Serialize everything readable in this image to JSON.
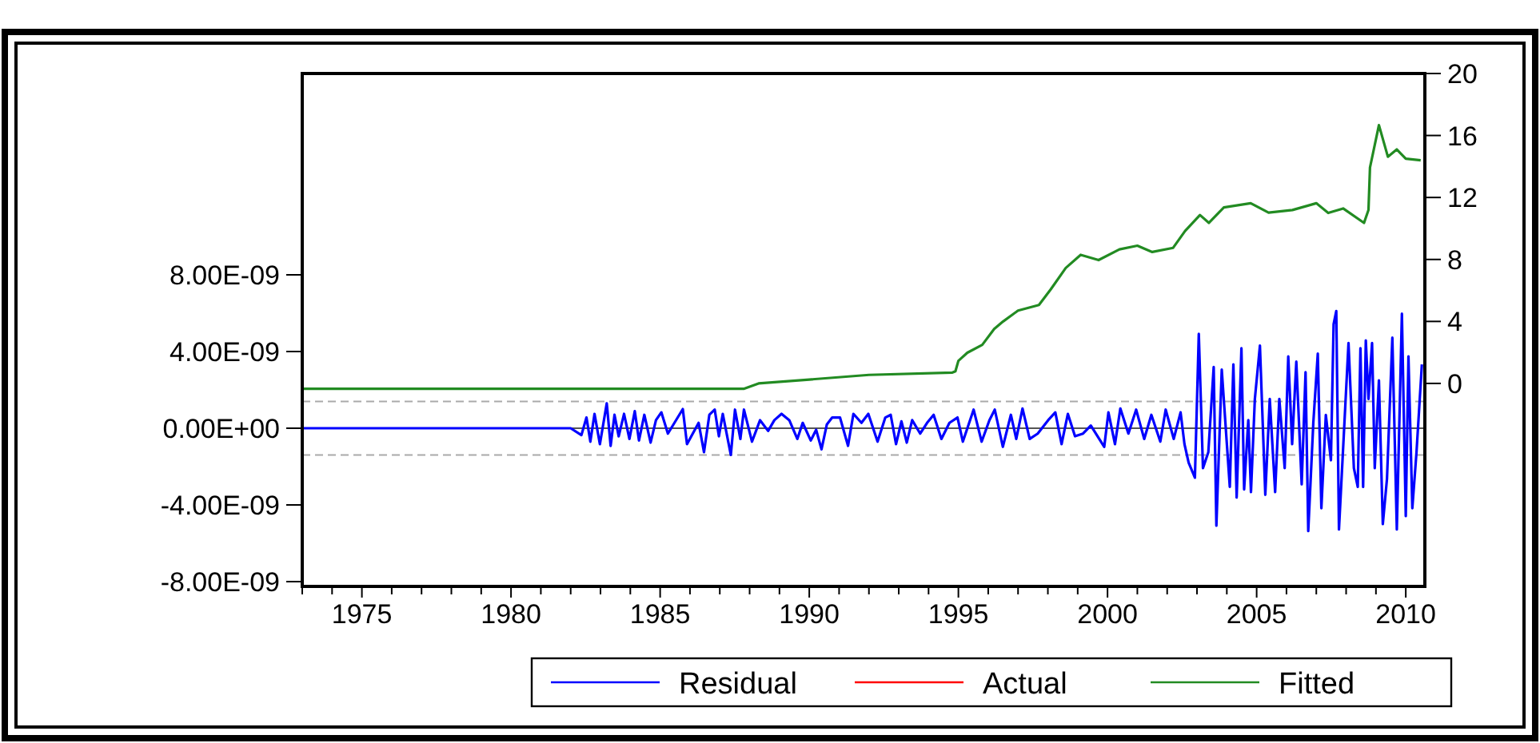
{
  "chart_data": {
    "type": "line",
    "legend": "bottom",
    "grid": false,
    "xlim": [
      1973,
      2010.64
    ],
    "xticks": [
      {
        "value": 1973,
        "label": null
      },
      {
        "value": 1974,
        "label": null
      },
      1975,
      {
        "value": 1976,
        "label": null
      },
      {
        "value": 1977,
        "label": null
      },
      {
        "value": 1978,
        "label": null
      },
      {
        "value": 1979,
        "label": null
      },
      1980,
      {
        "value": 1981,
        "label": null
      },
      {
        "value": 1982,
        "label": null
      },
      {
        "value": 1983,
        "label": null
      },
      {
        "value": 1984,
        "label": null
      },
      1985,
      {
        "value": 1986,
        "label": null
      },
      {
        "value": 1987,
        "label": null
      },
      {
        "value": 1988,
        "label": null
      },
      {
        "value": 1989,
        "label": null
      },
      1990,
      {
        "value": 1991,
        "label": null
      },
      {
        "value": 1992,
        "label": null
      },
      {
        "value": 1993,
        "label": null
      },
      {
        "value": 1994,
        "label": null
      },
      1995,
      {
        "value": 1996,
        "label": null
      },
      {
        "value": 1997,
        "label": null
      },
      {
        "value": 1998,
        "label": null
      },
      {
        "value": 1999,
        "label": null
      },
      2000,
      {
        "value": 2001,
        "label": null
      },
      {
        "value": 2002,
        "label": null
      },
      {
        "value": 2003,
        "label": null
      },
      {
        "value": 2004,
        "label": null
      },
      2005,
      {
        "value": 2006,
        "label": null
      },
      {
        "value": 2007,
        "label": null
      },
      {
        "value": 2008,
        "label": null
      },
      {
        "value": 2009,
        "label": null
      },
      2010
    ],
    "ylim": [
      -8.25e-09,
      1.85e-08
    ],
    "yticks": [
      {
        "value": -8e-09,
        "label": "-8.00E-09"
      },
      {
        "value": -4e-09,
        "label": "-4.00E-09"
      },
      {
        "value": 0,
        "label": "0.00E+00"
      },
      {
        "value": 4e-09,
        "label": "4.00E-09"
      },
      {
        "value": 8e-09,
        "label": "8.00E-09"
      }
    ],
    "y2lim": [
      -13.1,
      20
    ],
    "y2ticks": [
      0,
      4,
      8,
      12,
      16,
      20
    ],
    "ref_lines": [
      {
        "axis": "y",
        "value": 0,
        "color": "#555555",
        "line_style": "solid"
      },
      {
        "axis": "y",
        "value": 1.4e-09,
        "color": "#aaaaaa",
        "line_style": "dashed"
      },
      {
        "axis": "y",
        "value": -1.4e-09,
        "color": "#aaaaaa",
        "line_style": "dashed"
      }
    ],
    "series": [
      {
        "name": "Residual",
        "color": "#0000ff",
        "axis": "y",
        "x": [
          1973,
          1975,
          1977,
          1978.5,
          1980,
          1981,
          1982,
          1982.36,
          1982.53,
          1982.66,
          1982.8,
          1982.98,
          1983.21,
          1983.34,
          1983.47,
          1983.61,
          1983.79,
          1983.97,
          1984.15,
          1984.29,
          1984.47,
          1984.68,
          1984.86,
          1985.04,
          1985.26,
          1985.76,
          1985.9,
          1986.29,
          1986.47,
          1986.65,
          1986.83,
          1986.97,
          1987.1,
          1987.37,
          1987.51,
          1987.69,
          1987.81,
          1988.08,
          1988.35,
          1988.62,
          1988.83,
          1989.07,
          1989.33,
          1989.6,
          1989.78,
          1990.05,
          1990.23,
          1990.41,
          1990.59,
          1990.77,
          1991.03,
          1991.3,
          1991.48,
          1991.75,
          1991.98,
          1992.29,
          1992.55,
          1992.73,
          1992.91,
          1993.09,
          1993.27,
          1993.45,
          1993.72,
          1993.95,
          1994.17,
          1994.43,
          1994.7,
          1994.97,
          1995.15,
          1995.51,
          1995.78,
          1996.04,
          1996.22,
          1996.49,
          1996.76,
          1996.94,
          1997.15,
          1997.39,
          1997.66,
          1998.01,
          1998.25,
          1998.46,
          1998.67,
          1998.91,
          1999.18,
          1999.44,
          1999.89,
          2000.03,
          2000.25,
          2000.43,
          2000.7,
          2000.96,
          2001.23,
          2001.47,
          2001.77,
          2001.95,
          2002.22,
          2002.45,
          2002.58,
          2002.72,
          2002.93,
          2003.06,
          2003.2,
          2003.38,
          2003.56,
          2003.65,
          2003.83,
          2004.1,
          2004.22,
          2004.33,
          2004.49,
          2004.58,
          2004.72,
          2004.81,
          2004.94,
          2005.11,
          2005.29,
          2005.44,
          2005.62,
          2005.76,
          2005.94,
          2006.06,
          2006.19,
          2006.33,
          2006.51,
          2006.64,
          2006.73,
          2006.9,
          2007.05,
          2007.17,
          2007.32,
          2007.49,
          2007.58,
          2007.67,
          2007.76,
          2008.08,
          2008.26,
          2008.39,
          2008.48,
          2008.57,
          2008.66,
          2008.75,
          2008.87,
          2008.96,
          2009.1,
          2009.23,
          2009.37,
          2009.55,
          2009.7,
          2009.87,
          2010,
          2010.09,
          2010.22,
          2010.36,
          2010.54
        ],
        "values": [
          0,
          0,
          0,
          0,
          0,
          0,
          0,
          -3.6e-10,
          5.6e-10,
          -7e-10,
          7.5e-10,
          -8.3e-10,
          1.3e-09,
          -9.2e-10,
          7e-10,
          -4.2e-10,
          7.5e-10,
          -5.6e-10,
          8.9e-10,
          -6.4e-10,
          7e-10,
          -7.5e-10,
          4.2e-10,
          8.3e-10,
          -2.8e-10,
          1e-09,
          -8.3e-10,
          2.8e-10,
          -1.25e-09,
          7e-10,
          9.7e-10,
          -4.2e-10,
          7.5e-10,
          -1.39e-09,
          9.7e-10,
          -5.6e-10,
          9.7e-10,
          -7e-10,
          4.2e-10,
          -1.4e-10,
          4.2e-10,
          7.5e-10,
          4.2e-10,
          -5.6e-10,
          2.8e-10,
          -6.4e-10,
          -8e-11,
          -1.1e-09,
          2e-10,
          5.6e-10,
          5.6e-10,
          -9.2e-10,
          7.5e-10,
          2.8e-10,
          7.5e-10,
          -7e-10,
          5.6e-10,
          7e-10,
          -8.3e-10,
          3.6e-10,
          -7.5e-10,
          4.2e-10,
          -2.8e-10,
          2.8e-10,
          7e-10,
          -5.6e-10,
          2.8e-10,
          5.6e-10,
          -7e-10,
          9.7e-10,
          -7e-10,
          4.2e-10,
          9.7e-10,
          -9.7e-10,
          7e-10,
          -5.6e-10,
          1.03e-09,
          -5.6e-10,
          -2.8e-10,
          4.2e-10,
          8.3e-10,
          -8.3e-10,
          7.5e-10,
          -4.2e-10,
          -2.8e-10,
          1.4e-10,
          -9.7e-10,
          8.3e-10,
          -8.3e-10,
          1.03e-09,
          -2.8e-10,
          9.7e-10,
          -5.6e-10,
          7e-10,
          -7e-10,
          9.7e-10,
          -5.6e-10,
          8.3e-10,
          -8.3e-10,
          -1.8e-09,
          -2.58e-09,
          4.92e-09,
          -2.08e-09,
          -1.25e-09,
          3.19e-09,
          -5.08e-09,
          3.06e-09,
          -3.06e-09,
          3.33e-09,
          -3.61e-09,
          4.17e-09,
          -3.19e-09,
          4.2e-10,
          -3.33e-09,
          1.53e-09,
          4.31e-09,
          -3.47e-09,
          1.53e-09,
          -3.33e-09,
          1.53e-09,
          -2.08e-09,
          3.75e-09,
          -8.3e-10,
          3.47e-09,
          -2.92e-09,
          2.92e-09,
          -5.36e-09,
          2.8e-10,
          3.89e-09,
          -4.17e-09,
          6.9e-10,
          -1.67e-09,
          5.42e-09,
          6.11e-09,
          -5.28e-09,
          4.44e-09,
          -2.08e-09,
          -3.06e-09,
          4.17e-09,
          -3.06e-09,
          4.58e-09,
          1.53e-09,
          4.44e-09,
          -2.08e-09,
          2.5e-09,
          -5e-09,
          -2.64e-09,
          4.72e-09,
          -5.28e-09,
          5.97e-09,
          -4.58e-09,
          3.75e-09,
          -4.17e-09,
          -1.25e-09,
          3.33e-09
        ]
      },
      {
        "name": "Actual",
        "color": "#ff0000",
        "axis": "y2"
      },
      {
        "name": "Fitted",
        "color": "#228b22",
        "axis": "y2",
        "x": [
          1973,
          1987.8,
          1988.3,
          1990,
          1992,
          1994.8,
          1994.9,
          1995,
          1995.3,
          1995.8,
          1996.2,
          1996.5,
          1997,
          1997.7,
          1998.1,
          1998.6,
          1999.1,
          1999.7,
          2000.4,
          2001,
          2001.5,
          2002.2,
          2002.6,
          2003.1,
          2003.4,
          2003.9,
          2004.8,
          2005.4,
          2006.2,
          2007,
          2007.4,
          2007.9,
          2008.6,
          2008.75,
          2008.8,
          2009.1,
          2009.4,
          2009.7,
          2010,
          2010.5
        ],
        "values": [
          -0.35,
          -0.35,
          0,
          0.25,
          0.55,
          0.7,
          0.78,
          1.46,
          1.98,
          2.49,
          3.51,
          4,
          4.7,
          5.06,
          6.08,
          7.45,
          8.3,
          7.96,
          8.65,
          8.89,
          8.48,
          8.75,
          9.84,
          10.87,
          10.36,
          11.36,
          11.63,
          11.02,
          11.19,
          11.63,
          11,
          11.29,
          10.36,
          11.2,
          13.93,
          16.67,
          14.63,
          15.1,
          14.5,
          14.4
        ]
      }
    ]
  }
}
